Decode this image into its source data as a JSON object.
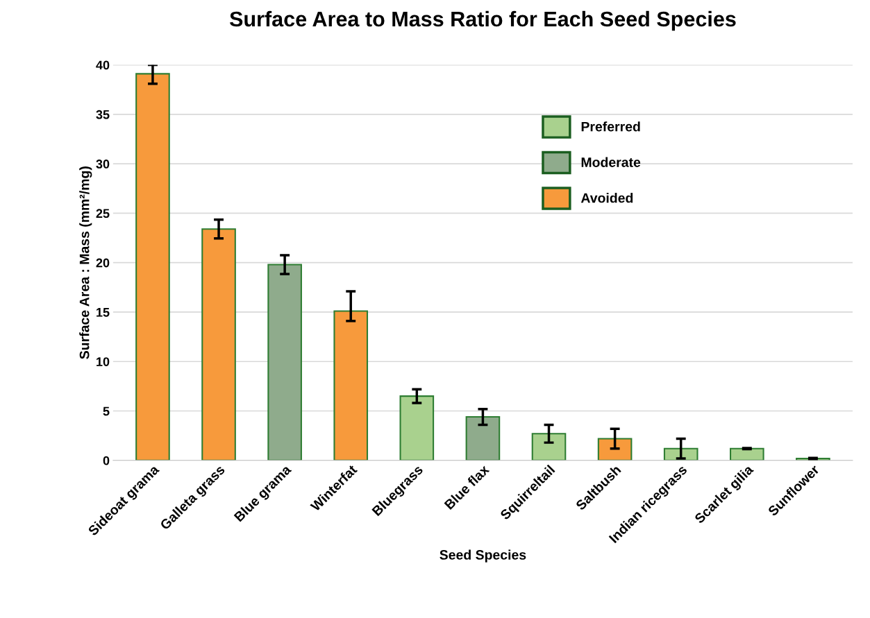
{
  "chart_data": {
    "type": "bar",
    "title": "Surface Area to Mass Ratio for Each Seed Species",
    "xlabel": "Seed Species",
    "ylabel": "Surface Area : Mass (mm²/mg)",
    "categories": [
      "Sideoat grama",
      "Galleta grass",
      "Blue grama",
      "Winterfat",
      "Bluegrass",
      "Blue flax",
      "Squirreltail",
      "Saltbush",
      "Indian ricegrass",
      "Scarlet gilia",
      "Sunflower"
    ],
    "series": [
      {
        "name": "Preferred",
        "color": "#a9d18e",
        "values": [
          null,
          null,
          null,
          null,
          6.5,
          null,
          2.7,
          null,
          1.2,
          1.2,
          0.2
        ],
        "errors": [
          null,
          null,
          null,
          null,
          0.7,
          null,
          0.9,
          null,
          1.0,
          0.05,
          0.05
        ]
      },
      {
        "name": "Moderate",
        "color": "#8fab8c",
        "values": [
          null,
          null,
          19.8,
          null,
          null,
          4.4,
          null,
          null,
          null,
          null,
          null
        ],
        "errors": [
          null,
          null,
          0.95,
          null,
          null,
          0.8,
          null,
          null,
          null,
          null,
          null
        ]
      },
      {
        "name": "Avoided",
        "color": "#f79a3c",
        "values": [
          39.1,
          23.4,
          null,
          15.1,
          null,
          null,
          null,
          2.2,
          null,
          null,
          null
        ],
        "errors": [
          [
            38.1,
            40.0
          ],
          0.95,
          null,
          [
            14.1,
            17.1
          ],
          null,
          null,
          null,
          1.0,
          null,
          null,
          null
        ]
      }
    ],
    "ylim": [
      0,
      40
    ],
    "yticks": [
      0,
      5,
      10,
      15,
      20,
      25,
      30,
      35,
      40
    ],
    "grid": "y",
    "legend": "top right"
  }
}
